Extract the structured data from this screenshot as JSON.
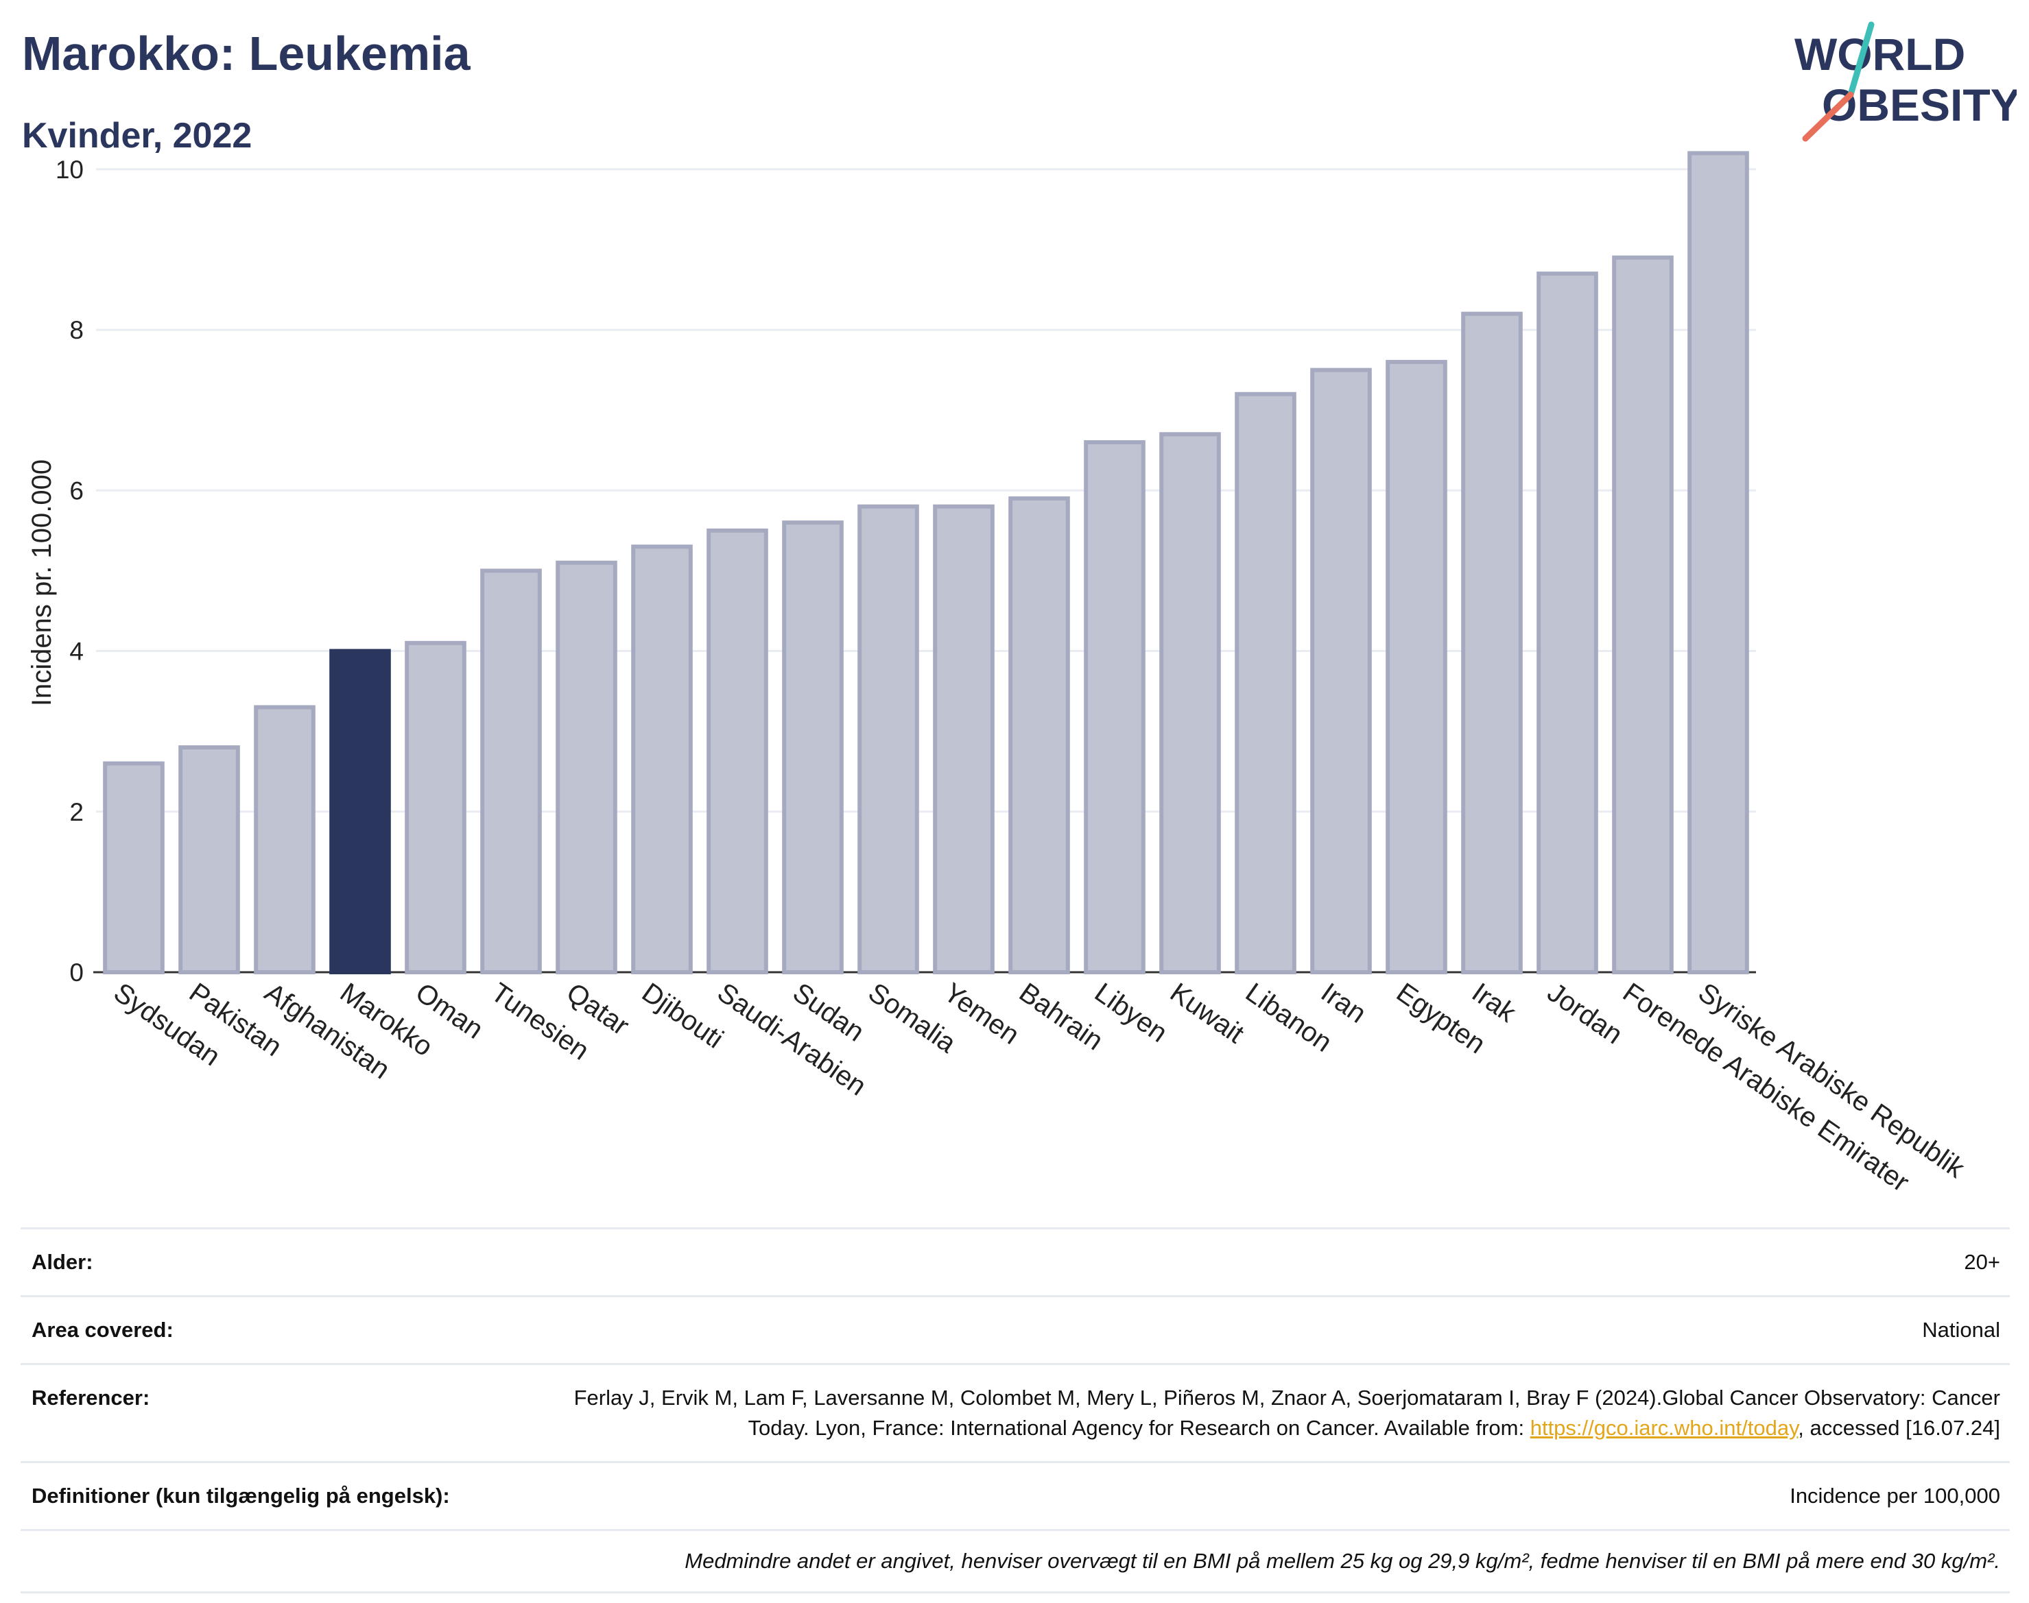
{
  "header": {
    "title": "Marokko: Leukemia",
    "subtitle": "Kvinder, 2022"
  },
  "logo": {
    "line1": "WORLD",
    "line2": "OBESITY"
  },
  "colors": {
    "highlight": "#2b365e",
    "bar_fill": "#c0c3d1",
    "bar_stroke": "#a5aac0",
    "gridline": "#e9ecf2",
    "title": "#2b365e",
    "link": "#e3a61b",
    "logo_teal": "#3dbfb8",
    "logo_coral": "#e8705a"
  },
  "chart_data": {
    "type": "bar",
    "ylabel": "Incidens pr. 100.000",
    "ylim": [
      0,
      10.4
    ],
    "yticks": [
      0,
      2,
      4,
      6,
      8,
      10
    ],
    "grid": true,
    "highlight": "Marokko",
    "categories": [
      "Sydsudan",
      "Pakistan",
      "Afghanistan",
      "Marokko",
      "Oman",
      "Tunesien",
      "Qatar",
      "Djibouti",
      "Saudi-Arabien",
      "Sudan",
      "Somalia",
      "Yemen",
      "Bahrain",
      "Libyen",
      "Kuwait",
      "Libanon",
      "Iran",
      "Egypten",
      "Irak",
      "Jordan",
      "Forenede Arabiske Emirater",
      "Syriske Arabiske Republik"
    ],
    "values": [
      2.6,
      2.8,
      3.3,
      4.0,
      4.1,
      5.0,
      5.1,
      5.3,
      5.5,
      5.6,
      5.8,
      5.8,
      5.9,
      6.6,
      6.7,
      7.2,
      7.5,
      7.6,
      8.2,
      8.7,
      8.9,
      10.2
    ]
  },
  "info": {
    "age_label": "Alder:",
    "age_value": "20+",
    "area_label": "Area covered:",
    "area_value": "National",
    "ref_label": "Referencer:",
    "ref_text_1": "Ferlay J, Ervik M, Lam F, Laversanne M, Colombet M, Mery L, Piñeros M, Znaor A, Soerjomataram I, Bray F (2024).Global Cancer Observatory: Cancer Today. Lyon, France: International Agency for Research on Cancer. Available from: ",
    "ref_link": "https://gco.iarc.who.int/today",
    "ref_text_2": ", accessed [16.07.24]",
    "def_label": "Definitioner (kun tilgængelig på engelsk):",
    "def_value": "Incidence per 100,000",
    "note": "Medmindre andet er angivet, henviser overvægt til en BMI på mellem 25 kg og 29,9 kg/m², fedme henviser til en BMI på mere end 30 kg/m²."
  }
}
